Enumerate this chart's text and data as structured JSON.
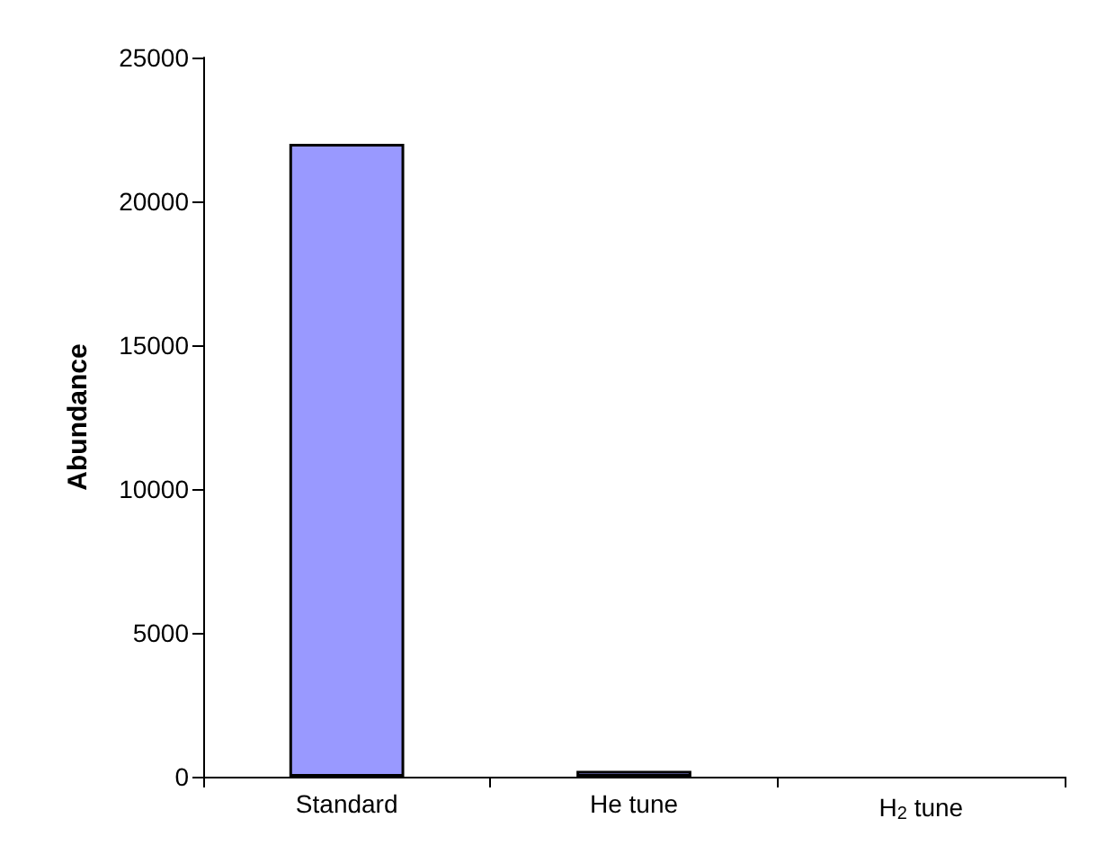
{
  "chart_data": {
    "type": "bar",
    "ylabel": "Abundance",
    "categories": [
      "Standard",
      "He tune",
      "H$_{2}$ tune"
    ],
    "values": [
      22000,
      200,
      null
    ],
    "color": "#9999ff",
    "ylim": [
      0,
      25000
    ],
    "yticks": [
      0,
      5000,
      10000,
      15000,
      20000,
      25000
    ],
    "grid": false
  }
}
